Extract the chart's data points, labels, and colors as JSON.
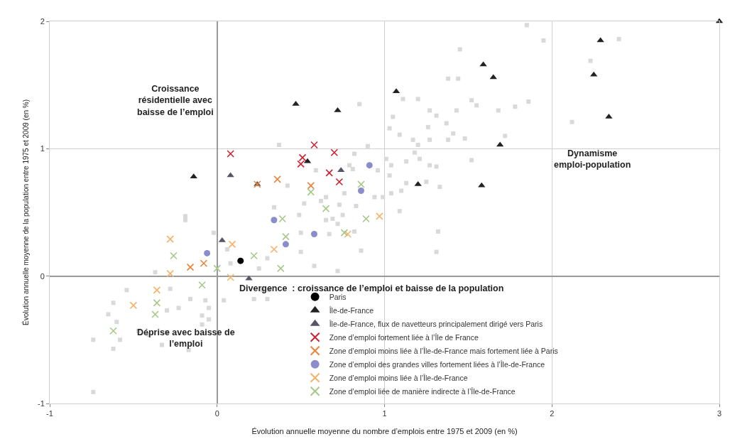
{
  "chart_data": {
    "type": "scatter",
    "xlabel": "Évolution annuelle moyenne du nombre d’emplois entre 1975 et 2009 (en %)",
    "ylabel": "Évolution annuelle moyenne de la population entre 1975 et 2009 (en %)",
    "xlim": [
      -1,
      3
    ],
    "xticks": [
      -1,
      0,
      1,
      2,
      3
    ],
    "ylim": [
      -1,
      2
    ],
    "yticks": [
      -1,
      0,
      1,
      2
    ],
    "grid": true,
    "legend": "bottom",
    "annotations": [
      "Croissance résidentielle avec baisse de l’emploi",
      "Dynamisme emploi-population",
      "Déprise avec baisse de l’emploi",
      "Divergence  : croissance de l’emploi et baisse de la population"
    ],
    "series": [
      {
        "color": "#d9d9d9",
        "marker": "square",
        "x": [
          1.85,
          1.95,
          2.4,
          2.23,
          1.45,
          1.38,
          1.2,
          1.44,
          1.11,
          1.05,
          1.03,
          1.09,
          1.27,
          1.31,
          1.37,
          1.26,
          1.41,
          1.38,
          1.27,
          1.17,
          1.2,
          1.52,
          1.55,
          1.43,
          1.48,
          1.68,
          1.18,
          1.21,
          1.13,
          1.01,
          1.04,
          1.27,
          1.31,
          1.52,
          1.03,
          1.13,
          1.25,
          1.33,
          1.04,
          1.1,
          1.09,
          0.85,
          0.37,
          0.9,
          2.12,
          1.86,
          1.78,
          1.72,
          1.32,
          1.31,
          0.82,
          0.96,
          0.79,
          0.81,
          0.59,
          0.42,
          0.76,
          0.65,
          0.34,
          0.52,
          0.62,
          0.73,
          0.83,
          0.94,
          0.99,
          0.49,
          0.69,
          0.75,
          0.65,
          0.72,
          0.5,
          0.67,
          0.82,
          0.3,
          0.5,
          0.58,
          0.72,
          0.86,
          0.31,
          -0.19,
          -0.02,
          0.06,
          0.08,
          -0.37,
          -0.54,
          -0.62,
          -0.28,
          -0.16,
          -0.07,
          -0.05,
          -0.23,
          -0.09,
          -0.05,
          -0.09,
          -0.3,
          -0.65,
          -0.6,
          -0.47,
          -0.41,
          -0.58,
          -0.74,
          -0.3,
          -0.33,
          -0.62,
          -0.17,
          -0.74,
          0.27,
          0.3,
          0.22,
          0.25,
          0.04,
          -0.19
        ],
        "values": [
          1.97,
          1.85,
          1.86,
          1.69,
          1.78,
          1.55,
          1.39,
          1.55,
          1.39,
          1.25,
          1.16,
          1.11,
          1.3,
          1.26,
          1.2,
          1.17,
          1.12,
          1.07,
          1.07,
          1.07,
          1.03,
          1.38,
          1.34,
          1.3,
          1.08,
          1.3,
          0.97,
          0.92,
          0.9,
          0.92,
          0.87,
          0.87,
          0.86,
          0.91,
          0.79,
          0.73,
          0.74,
          0.7,
          0.65,
          0.67,
          0.51,
          1.35,
          1.03,
          1.02,
          1.21,
          1.37,
          1.33,
          1.1,
          0.35,
          0.19,
          0.96,
          0.83,
          0.87,
          0.84,
          0.83,
          0.71,
          0.65,
          0.62,
          0.54,
          0.57,
          0.59,
          0.56,
          0.55,
          0.62,
          0.62,
          0.48,
          0.45,
          0.48,
          0.44,
          0.41,
          0.34,
          0.33,
          0.35,
          0.14,
          0.19,
          0.08,
          0.04,
          0.2,
          -0.11,
          0.44,
          0.34,
          0.21,
          0.1,
          0.03,
          -0.11,
          -0.21,
          -0.1,
          -0.18,
          -0.19,
          -0.25,
          -0.25,
          -0.31,
          -0.34,
          -0.38,
          -0.27,
          -0.3,
          -0.36,
          -0.43,
          -0.46,
          -0.5,
          -0.5,
          -0.44,
          -0.54,
          -0.57,
          -0.58,
          -0.91,
          -0.11,
          -0.18,
          -0.18,
          0.06,
          -0.19,
          0.47
        ]
      },
      {
        "name": "Paris",
        "color": "#000000",
        "marker": "circle",
        "x": [
          0.14
        ],
        "values": [
          0.12
        ]
      },
      {
        "name": "Île-de-France",
        "color": "#222222",
        "marker": "triangle",
        "x": [
          2.29,
          2.25,
          2.34,
          3.0,
          1.59,
          1.65,
          1.07,
          0.47,
          0.72,
          1.69,
          1.2,
          1.58,
          -0.14,
          0.54
        ],
        "values": [
          1.85,
          1.58,
          1.25,
          2.0,
          1.66,
          1.56,
          1.45,
          1.35,
          1.3,
          1.03,
          0.72,
          0.71,
          0.78,
          0.9
        ]
      },
      {
        "name": "Île-de-France, flux de navetteurs principalement dirigé vers Paris",
        "color": "#555566",
        "marker": "triangle",
        "x": [
          0.08,
          0.24,
          0.74,
          0.03,
          0.19
        ],
        "values": [
          0.79,
          0.72,
          0.83,
          0.28,
          -0.02
        ]
      },
      {
        "name": "Zone d’emploi fortement liée à l’Île de France",
        "color": "#cc2233",
        "marker": "cross",
        "x": [
          0.08,
          0.58,
          0.7,
          0.51,
          0.5,
          0.67,
          0.73
        ],
        "values": [
          0.96,
          1.03,
          0.97,
          0.93,
          0.88,
          0.81,
          0.74
        ]
      },
      {
        "name": "Zone d’emploi moins liée à l’Île-de-France mais fortement liée à Paris",
        "color": "#e8843c",
        "marker": "cross",
        "x": [
          0.36,
          0.56,
          0.24,
          -0.08,
          -0.16
        ],
        "values": [
          0.76,
          0.71,
          0.72,
          0.1,
          0.07
        ]
      },
      {
        "name": "Zone d’emploi des grandes villes fortement liées à l’Île-de-France",
        "color": "#8a8ccc",
        "marker": "circle",
        "x": [
          0.91,
          0.86,
          0.34,
          0.58,
          0.41,
          -0.06
        ],
        "values": [
          0.87,
          0.67,
          0.44,
          0.33,
          0.25,
          0.18
        ]
      },
      {
        "name": "Zone d’emploi moins liée à l’Île-de-France",
        "color": "#f5b26b",
        "marker": "cross",
        "x": [
          0.97,
          0.78,
          -0.28,
          -0.28,
          -0.36,
          -0.5,
          0.08,
          0.09,
          0.34
        ],
        "values": [
          0.47,
          0.33,
          0.29,
          0.02,
          -0.11,
          -0.23,
          -0.01,
          0.25,
          0.21
        ]
      },
      {
        "name": "Zone d’emploi liée de manière indirecte à l’Île-de-France",
        "color": "#a8c88a",
        "marker": "cross",
        "x": [
          -0.26,
          0.0,
          -0.09,
          -0.36,
          -0.37,
          -0.62,
          0.22,
          0.86,
          0.56,
          0.65,
          0.89,
          0.39,
          0.76,
          0.41,
          0.38
        ],
        "values": [
          0.16,
          0.06,
          -0.07,
          -0.21,
          -0.3,
          -0.43,
          0.16,
          0.72,
          0.66,
          0.53,
          0.45,
          0.45,
          0.34,
          0.31,
          0.06
        ]
      }
    ]
  }
}
